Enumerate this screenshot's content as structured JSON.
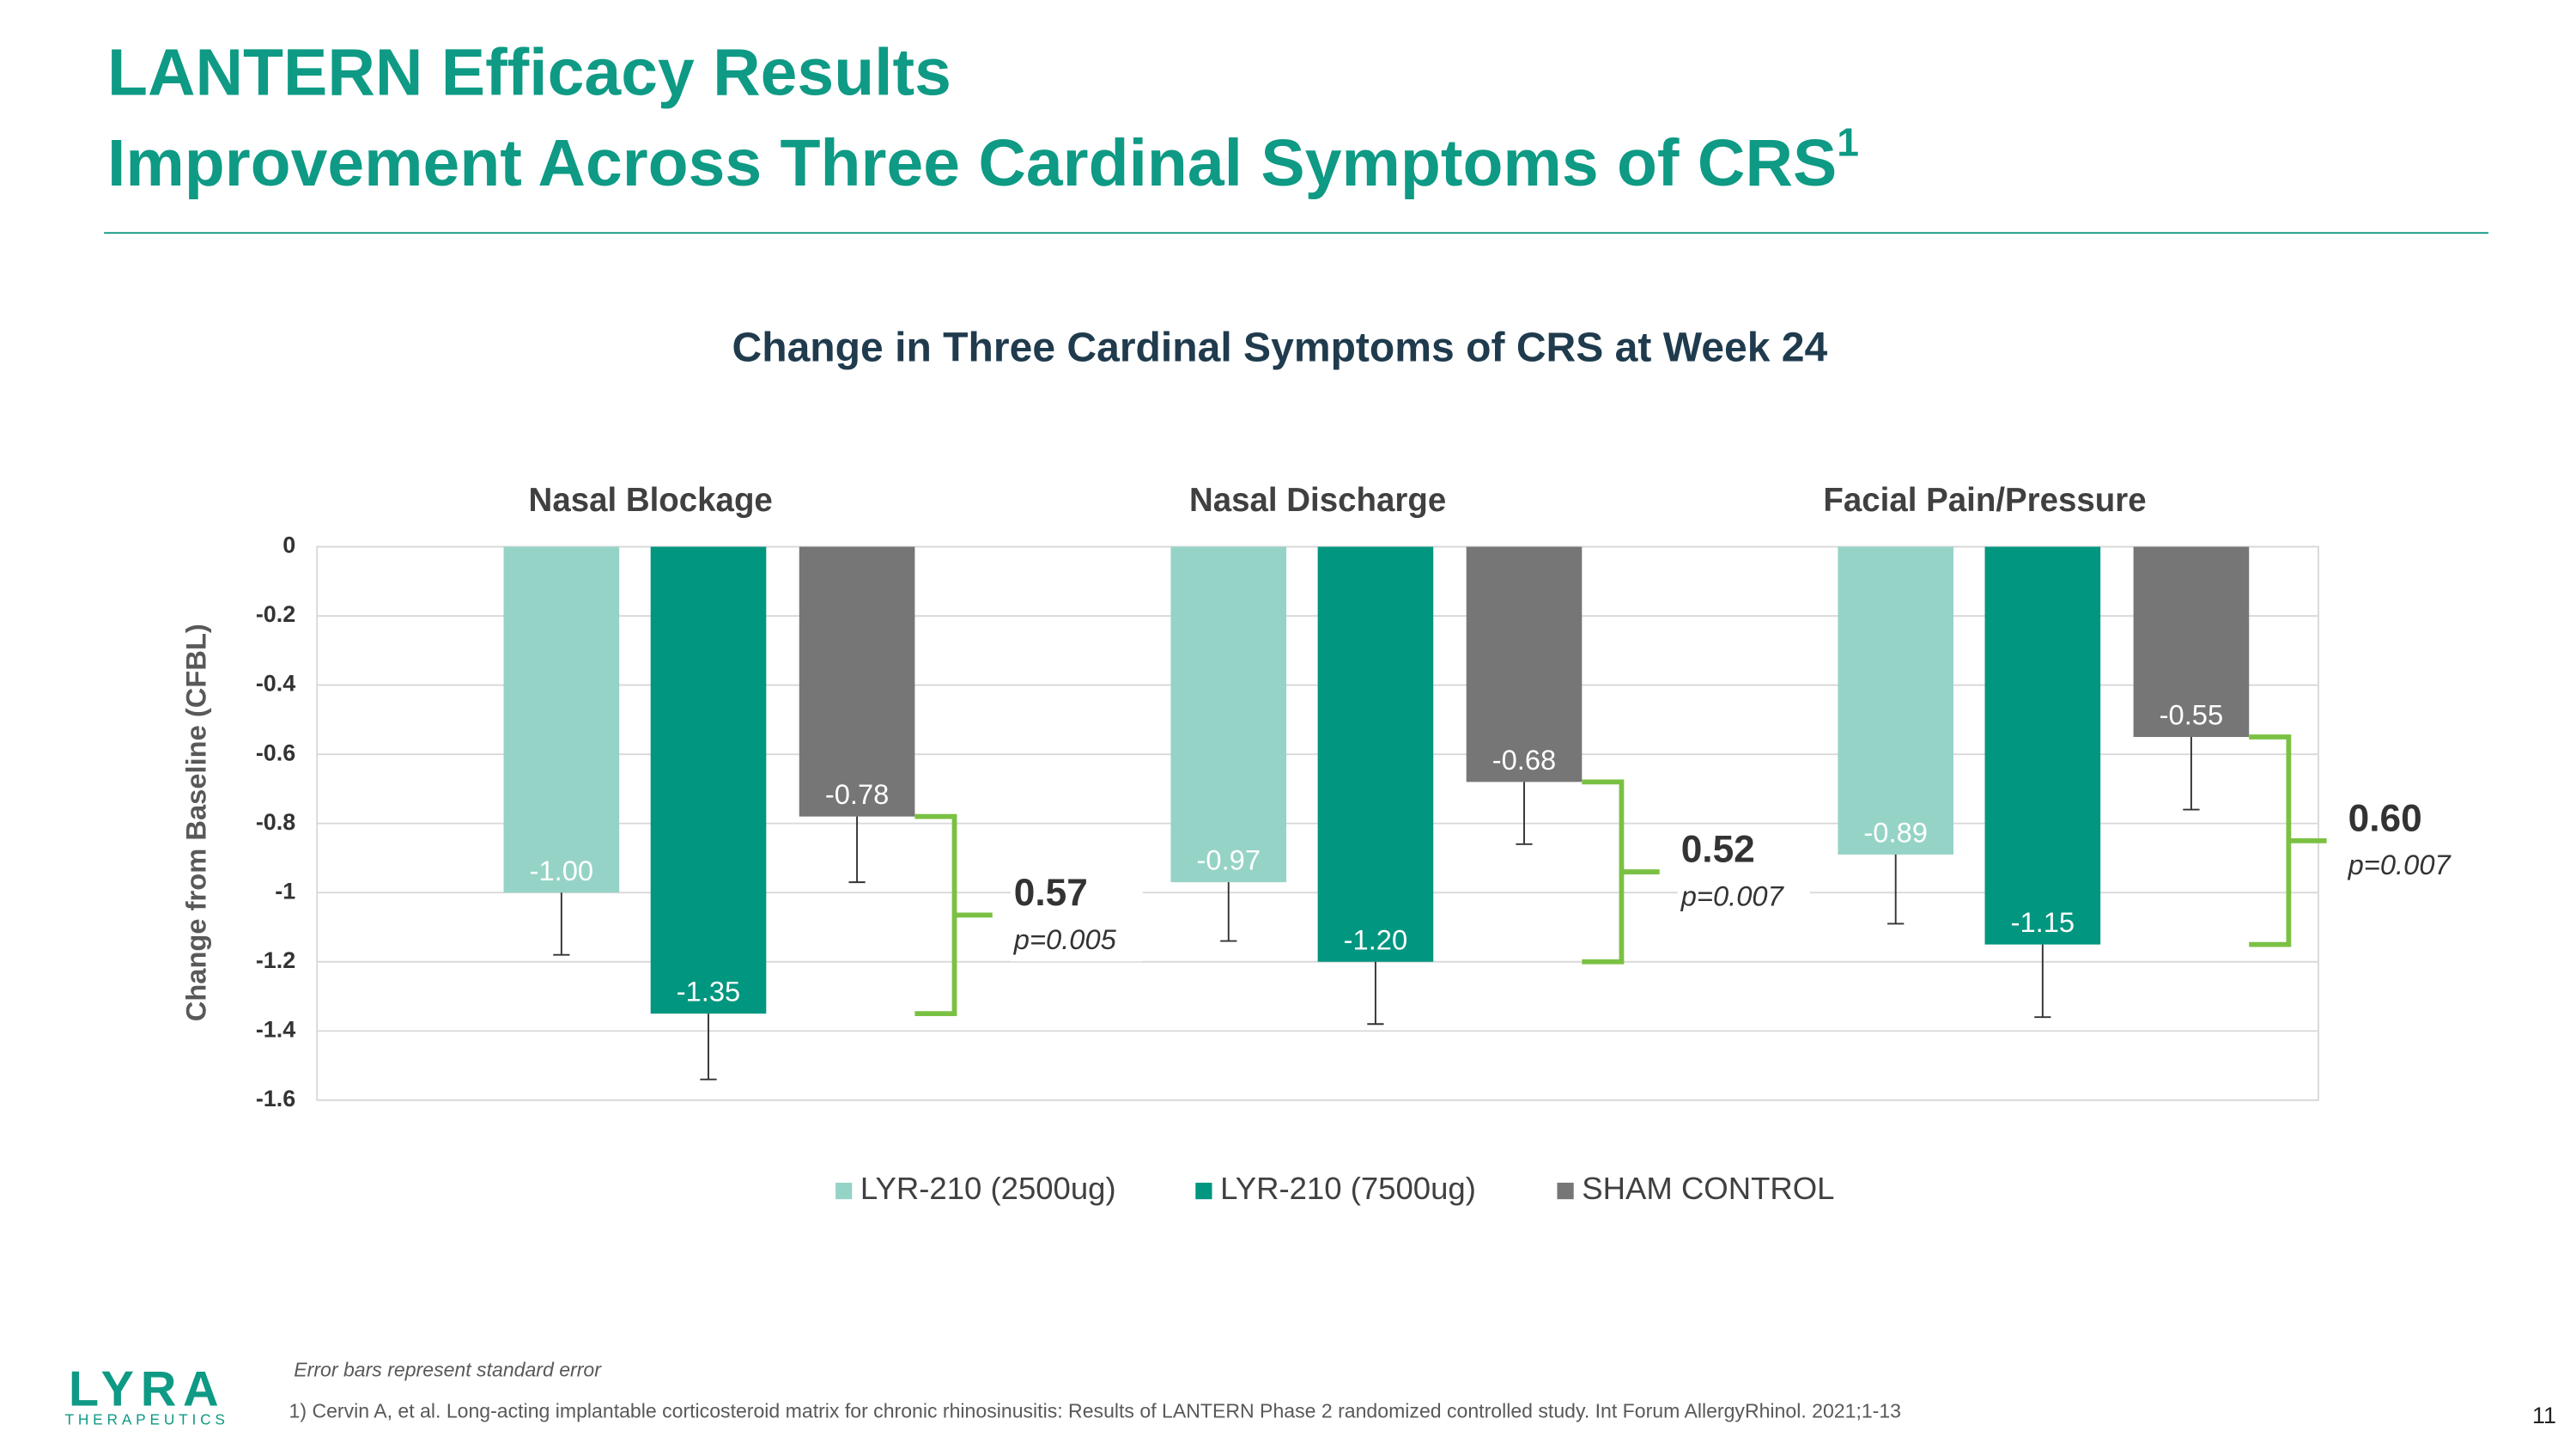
{
  "header": {
    "title_line1": "LANTERN Efficacy Results",
    "title_line2": "Improvement Across Three Cardinal Symptoms of CRS",
    "title_sup": "1"
  },
  "chart_data": {
    "type": "bar",
    "title": "Change in Three Cardinal Symptoms of CRS at Week 24",
    "y_label": "Change from Baseline (CFBL)",
    "categories": [
      "Nasal Blockage",
      "Nasal Discharge",
      "Facial Pain/Pressure"
    ],
    "series": [
      {
        "name": "LYR-210 (2500ug)",
        "color": "#96d3c7",
        "values": [
          -1,
          -0.97,
          -0.89
        ],
        "value_labels": [
          "-1.00",
          "-0.97",
          "-0.89"
        ],
        "errors": [
          0.18,
          0.17,
          0.2
        ]
      },
      {
        "name": "LYR-210 (7500ug)",
        "color": "#00967f",
        "values": [
          -1.35,
          -1.2,
          -1.15
        ],
        "value_labels": [
          "-1.35",
          "-1.20",
          "-1.15"
        ],
        "errors": [
          0.19,
          0.18,
          0.21
        ]
      },
      {
        "name": "SHAM CONTROL",
        "color": "#767676",
        "values": [
          -0.78,
          -0.68,
          -0.55
        ],
        "value_labels": [
          "-0.78",
          "-0.68",
          "-0.55"
        ],
        "errors": [
          0.19,
          0.18,
          0.21
        ]
      }
    ],
    "comparisons": [
      {
        "difference": "0.57",
        "p": "p=0.005"
      },
      {
        "difference": "0.52",
        "p": "p=0.007"
      },
      {
        "difference": "0.60",
        "p": "p=0.007"
      }
    ],
    "bracket_color": "#7ac143",
    "ylim": [
      -1.6,
      0
    ],
    "yticks": [
      0,
      -0.2,
      -0.4,
      -0.6,
      -0.8,
      -1,
      -1.2,
      -1.4,
      -1.6
    ],
    "grid": true
  },
  "footer": {
    "note": "Error bars represent standard error",
    "reference": "1) Cervin A, et al. Long-acting implantable corticosteroid matrix for chronic rhinosinusitis: Results of LANTERN Phase 2 randomized controlled study. Int Forum AllergyRhinol. 2021;1-13",
    "page": "11",
    "logo": "LYRA",
    "logo_sub": "THERAPEUTICS"
  }
}
